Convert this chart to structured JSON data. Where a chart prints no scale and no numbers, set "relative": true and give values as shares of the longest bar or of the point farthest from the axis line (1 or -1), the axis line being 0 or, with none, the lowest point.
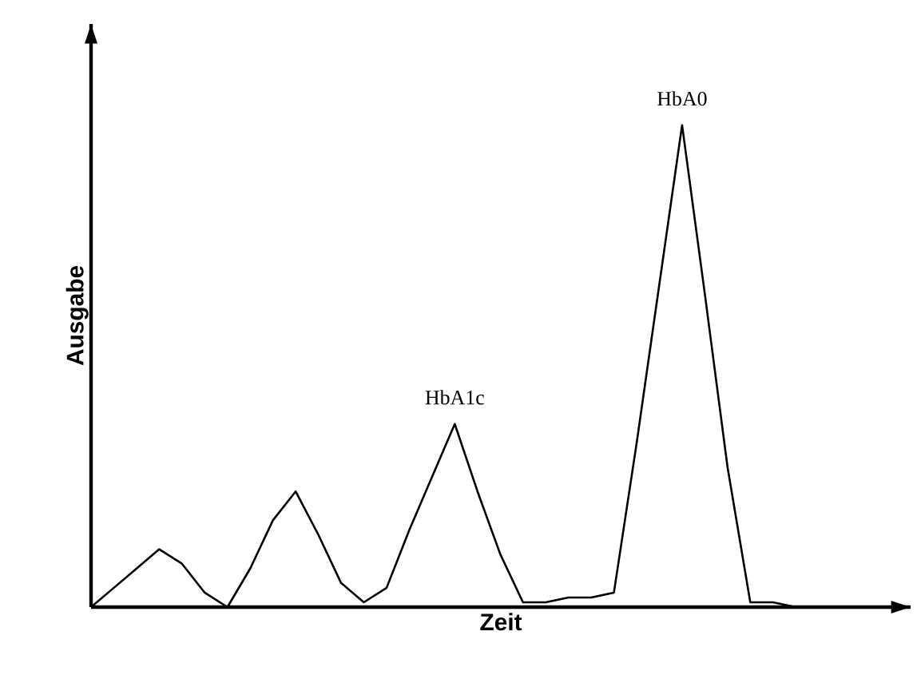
{
  "chart_data": {
    "type": "line",
    "relative": true,
    "xlabel": "Zeit",
    "ylabel": "Ausgabe",
    "marker": "none",
    "line_style": "solid",
    "categories": [
      null,
      null,
      null,
      null,
      null,
      null,
      null,
      null,
      null,
      null,
      null,
      null,
      null,
      null,
      null,
      null,
      null,
      null,
      null,
      null,
      null,
      null,
      null,
      null,
      null,
      null,
      null,
      null,
      null,
      null,
      null,
      null
    ],
    "series": [
      {
        "color": "#000000",
        "values": [
          0,
          0.04,
          0.08,
          0.12,
          0.09,
          0.03,
          0,
          0.08,
          0.18,
          0.24,
          0.15,
          0.05,
          0.01,
          0.04,
          0.16,
          0.27,
          0.38,
          0.24,
          0.11,
          0.01,
          0.01,
          0.02,
          0.02,
          0.03,
          0.34,
          0.67,
          1,
          0.65,
          0.29,
          0.01,
          0.01,
          0
        ]
      }
    ],
    "annotations": [
      {
        "text": "HbA1c",
        "y": 0.38
      },
      {
        "text": "HbA0",
        "y": 1
      }
    ]
  }
}
